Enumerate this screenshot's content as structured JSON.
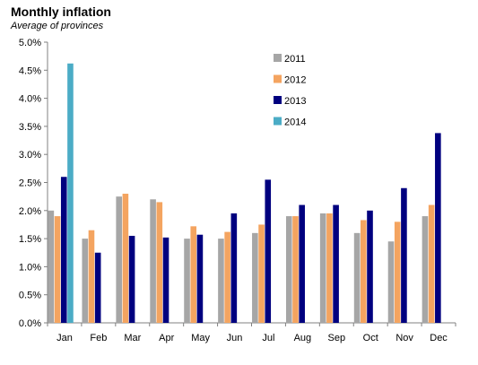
{
  "chart_data": {
    "type": "bar",
    "title": "Monthly inflation",
    "subtitle": "Average of provinces",
    "xlabel": "",
    "ylabel": "",
    "ylim": [
      0,
      5.0
    ],
    "yticks": [
      "0.0%",
      "0.5%",
      "1.0%",
      "1.5%",
      "2.0%",
      "2.5%",
      "3.0%",
      "3.5%",
      "4.0%",
      "4.5%",
      "5.0%"
    ],
    "categories": [
      "Jan",
      "Feb",
      "Mar",
      "Apr",
      "May",
      "Jun",
      "Jul",
      "Aug",
      "Sep",
      "Oct",
      "Nov",
      "Dec"
    ],
    "series": [
      {
        "name": "2011",
        "color": "#a6a6a6",
        "values": [
          2.0,
          1.5,
          2.25,
          2.2,
          1.5,
          1.5,
          1.6,
          1.9,
          1.95,
          1.6,
          1.45,
          1.9
        ]
      },
      {
        "name": "2012",
        "color": "#f4a460",
        "values": [
          1.9,
          1.65,
          2.3,
          2.15,
          1.72,
          1.62,
          1.75,
          1.9,
          1.95,
          1.83,
          1.8,
          2.1
        ]
      },
      {
        "name": "2013",
        "color": "#00007f",
        "values": [
          2.6,
          1.25,
          1.55,
          1.52,
          1.57,
          1.95,
          2.55,
          2.1,
          2.1,
          2.0,
          2.4,
          3.38
        ]
      },
      {
        "name": "2014",
        "color": "#4bacc6",
        "values": [
          4.62,
          null,
          null,
          null,
          null,
          null,
          null,
          null,
          null,
          null,
          null,
          null
        ]
      }
    ],
    "legend_position": "top-right",
    "grid": false
  }
}
